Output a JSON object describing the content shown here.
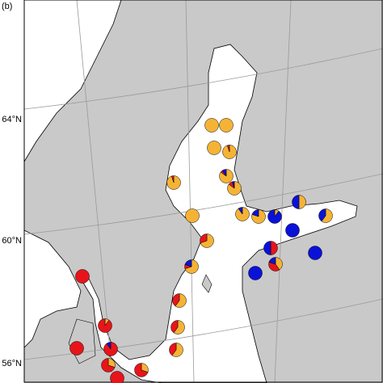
{
  "panel_label": "(b)",
  "lat_labels": [
    "64°N",
    "60°N",
    "56°N"
  ],
  "colors": [
    "#f5b335",
    "#e8141a",
    "#0a12d8"
  ],
  "pies": [
    {
      "shares": [
        100,
        0,
        0
      ]
    },
    {
      "shares": [
        100,
        0,
        0
      ]
    },
    {
      "shares": [
        100,
        0,
        0
      ]
    },
    {
      "shares": [
        95,
        5,
        0
      ]
    },
    {
      "shares": [
        85,
        5,
        10
      ]
    },
    {
      "shares": [
        85,
        10,
        5
      ]
    },
    {
      "shares": [
        95,
        5,
        0
      ]
    },
    {
      "shares": [
        100,
        0,
        0
      ]
    },
    {
      "shares": [
        90,
        0,
        10
      ]
    },
    {
      "shares": [
        80,
        0,
        20
      ]
    },
    {
      "shares": [
        10,
        0,
        90
      ]
    },
    {
      "shares": [
        50,
        0,
        50
      ]
    },
    {
      "shares": [
        60,
        0,
        40
      ]
    },
    {
      "shares": [
        70,
        30,
        0
      ]
    },
    {
      "shares": [
        70,
        10,
        20
      ]
    },
    {
      "shares": [
        0,
        50,
        50
      ]
    },
    {
      "shares": [
        0,
        0,
        100
      ]
    },
    {
      "shares": [
        0,
        0,
        100
      ]
    },
    {
      "shares": [
        0,
        0,
        100
      ]
    },
    {
      "shares": [
        40,
        40,
        20
      ]
    },
    {
      "shares": [
        60,
        40,
        0
      ]
    },
    {
      "shares": [
        0,
        100,
        0
      ]
    },
    {
      "shares": [
        10,
        90,
        0
      ]
    },
    {
      "shares": [
        60,
        40,
        0
      ]
    },
    {
      "shares": [
        60,
        40,
        0
      ]
    },
    {
      "shares": [
        0,
        100,
        0
      ]
    },
    {
      "shares": [
        0,
        90,
        10
      ]
    },
    {
      "shares": [
        30,
        70,
        0
      ]
    },
    {
      "shares": [
        30,
        70,
        0
      ]
    },
    {
      "shares": [
        0,
        100,
        0
      ]
    }
  ]
}
